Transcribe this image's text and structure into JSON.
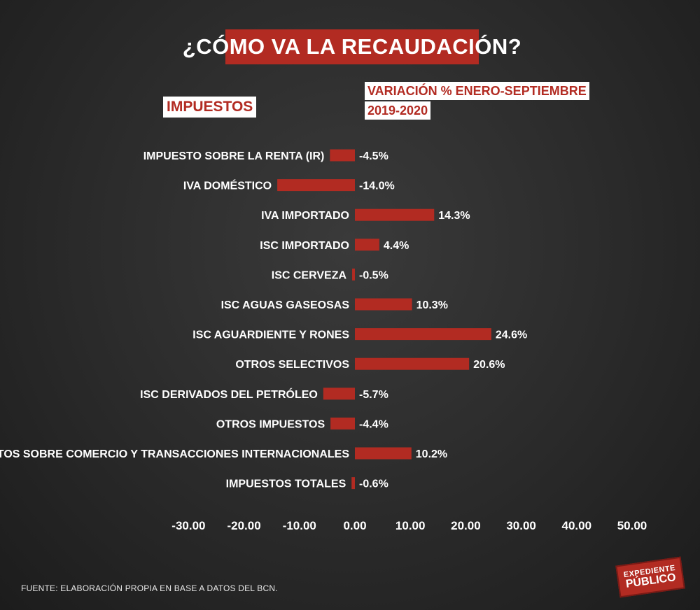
{
  "header": {
    "title": "¿CÓMO VA LA RECAUDACIÓN?",
    "left_column_label": "IMPUESTOS",
    "right_column_label_line1": "VARIACIÓN % ENERO-SEPTIEMBRE",
    "right_column_label_line2": "2019-2020"
  },
  "footer": {
    "source": "FUENTE: ELABORACIÓN PROPIA EN BASE A DATOS DEL BCN."
  },
  "logo": {
    "line1": "EXPEDIENTE",
    "line2": "PÚBLICO"
  },
  "colors": {
    "bar": "#b22b22",
    "text": "#ffffff"
  },
  "chart_data": {
    "type": "bar",
    "orientation": "horizontal",
    "categories": [
      "IMPUESTO SOBRE LA RENTA (IR)",
      "IVA DOMÉSTICO",
      "IVA IMPORTADO",
      "ISC IMPORTADO",
      "ISC CERVEZA",
      "ISC AGUAS GASEOSAS",
      "ISC AGUARDIENTE Y RONES",
      "OTROS SELECTIVOS",
      "ISC DERIVADOS DEL PETRÓLEO",
      "OTROS IMPUESTOS",
      "IMPUESTOS SOBRE COMERCIO Y TRANSACCIONES INTERNACIONALES",
      "IMPUESTOS TOTALES"
    ],
    "values": [
      -4.5,
      -14.0,
      14.3,
      4.4,
      -0.5,
      10.3,
      24.6,
      20.6,
      -5.7,
      -4.4,
      10.2,
      -0.6
    ],
    "data_labels": [
      "-4.5%",
      "-14.0%",
      "14.3%",
      "4.4%",
      "-0.5%",
      "10.3%",
      "24.6%",
      "20.6%",
      "-5.7%",
      "-4.4%",
      "10.2%",
      "-0.6%"
    ],
    "xlim": [
      -30,
      50
    ],
    "x_ticks": [
      -30,
      -20,
      -10,
      0,
      10,
      20,
      30,
      40,
      50
    ],
    "x_tick_labels": [
      "-30.00",
      "-20.00",
      "-10.00",
      "0.00",
      "10.00",
      "20.00",
      "30.00",
      "40.00",
      "50.00"
    ],
    "grid": false,
    "legend": "none"
  }
}
